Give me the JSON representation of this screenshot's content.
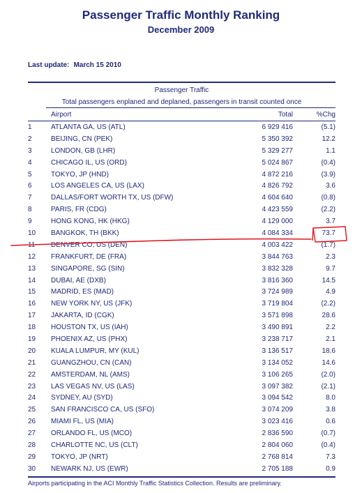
{
  "header": {
    "title": "Passenger Traffic Monthly Ranking",
    "subtitle": "December 2009",
    "last_update_label": "Last update:",
    "last_update_value": "March 15 2010"
  },
  "table": {
    "section_title": "Passenger Traffic",
    "section_subtitle": "Total passengers enplaned and deplaned, passengers in transit counted once",
    "columns": {
      "airport": "Airport",
      "total": "Total",
      "chg": "%Chg"
    },
    "rows": [
      {
        "rank": "1",
        "airport": "ATLANTA GA, US (ATL)",
        "total": "6 929 416",
        "chg": "(5.1)"
      },
      {
        "rank": "2",
        "airport": "BEIJING, CN (PEK)",
        "total": "5 350 392",
        "chg": "12.2"
      },
      {
        "rank": "3",
        "airport": "LONDON, GB (LHR)",
        "total": "5 329 277",
        "chg": "1.1"
      },
      {
        "rank": "4",
        "airport": "CHICAGO IL, US (ORD)",
        "total": "5 024 867",
        "chg": "(0.4)"
      },
      {
        "rank": "5",
        "airport": "TOKYO, JP (HND)",
        "total": "4 872 216",
        "chg": "(3.9)"
      },
      {
        "rank": "6",
        "airport": "LOS ANGELES CA, US (LAX)",
        "total": "4 826 792",
        "chg": "3.6"
      },
      {
        "rank": "7",
        "airport": "DALLAS/FORT WORTH TX, US (DFW)",
        "total": "4 604 640",
        "chg": "(0.8)"
      },
      {
        "rank": "8",
        "airport": "PARIS, FR (CDG)",
        "total": "4 423 559",
        "chg": "(2.2)"
      },
      {
        "rank": "9",
        "airport": "HONG KONG, HK (HKG)",
        "total": "4 129 000",
        "chg": "3.7"
      },
      {
        "rank": "10",
        "airport": "BANGKOK, TH (BKK)",
        "total": "4 084 334",
        "chg": "73.7"
      },
      {
        "rank": "11",
        "airport": "DENVER CO, US (DEN)",
        "total": "4 003 422",
        "chg": "(1.7)"
      },
      {
        "rank": "12",
        "airport": "FRANKFURT, DE (FRA)",
        "total": "3 844 763",
        "chg": "2.3"
      },
      {
        "rank": "13",
        "airport": "SINGAPORE, SG (SIN)",
        "total": "3 832 328",
        "chg": "9.7"
      },
      {
        "rank": "14",
        "airport": "DUBAI, AE (DXB)",
        "total": "3 816 360",
        "chg": "14.5"
      },
      {
        "rank": "15",
        "airport": "MADRID, ES (MAD)",
        "total": "3 724 989",
        "chg": "4.9"
      },
      {
        "rank": "16",
        "airport": "NEW YORK NY, US (JFK)",
        "total": "3 719 804",
        "chg": "(2.2)"
      },
      {
        "rank": "17",
        "airport": "JAKARTA, ID (CGK)",
        "total": "3 571 898",
        "chg": "28.6"
      },
      {
        "rank": "18",
        "airport": "HOUSTON TX, US (IAH)",
        "total": "3 490 891",
        "chg": "2.2"
      },
      {
        "rank": "19",
        "airport": "PHOENIX AZ, US (PHX)",
        "total": "3 238 717",
        "chg": "2.1"
      },
      {
        "rank": "20",
        "airport": "KUALA LUMPUR, MY (KUL)",
        "total": "3 136 517",
        "chg": "18.6"
      },
      {
        "rank": "21",
        "airport": "GUANGZHOU, CN (CAN)",
        "total": "3 134 052",
        "chg": "14.6"
      },
      {
        "rank": "22",
        "airport": "AMSTERDAM, NL (AMS)",
        "total": "3 106 265",
        "chg": "(2.0)"
      },
      {
        "rank": "23",
        "airport": "LAS VEGAS NV, US (LAS)",
        "total": "3 097 382",
        "chg": "(2.1)"
      },
      {
        "rank": "24",
        "airport": "SYDNEY, AU (SYD)",
        "total": "3 094 542",
        "chg": "8.0"
      },
      {
        "rank": "25",
        "airport": "SAN FRANCISCO CA, US (SFO)",
        "total": "3 074 209",
        "chg": "3.8"
      },
      {
        "rank": "26",
        "airport": "MIAMI FL, US (MIA)",
        "total": "3 023 416",
        "chg": "0.6"
      },
      {
        "rank": "27",
        "airport": "ORLANDO FL, US (MCO)",
        "total": "2 836 590",
        "chg": "(0.7)"
      },
      {
        "rank": "28",
        "airport": "CHARLOTTE NC, US (CLT)",
        "total": "2 804 060",
        "chg": "(0.4)"
      },
      {
        "rank": "29",
        "airport": "TOKYO, JP (NRT)",
        "total": "2 768 814",
        "chg": "7.3"
      },
      {
        "rank": "30",
        "airport": "NEWARK NJ, US (EWR)",
        "total": "2 705 188",
        "chg": "0.9"
      }
    ]
  },
  "footer": {
    "note": "Airports participating in the ACI Monthly Traffic Statistics Collection.  Results are preliminary."
  },
  "colors": {
    "text": "#1f2a78",
    "annotation": "#e0141e"
  }
}
